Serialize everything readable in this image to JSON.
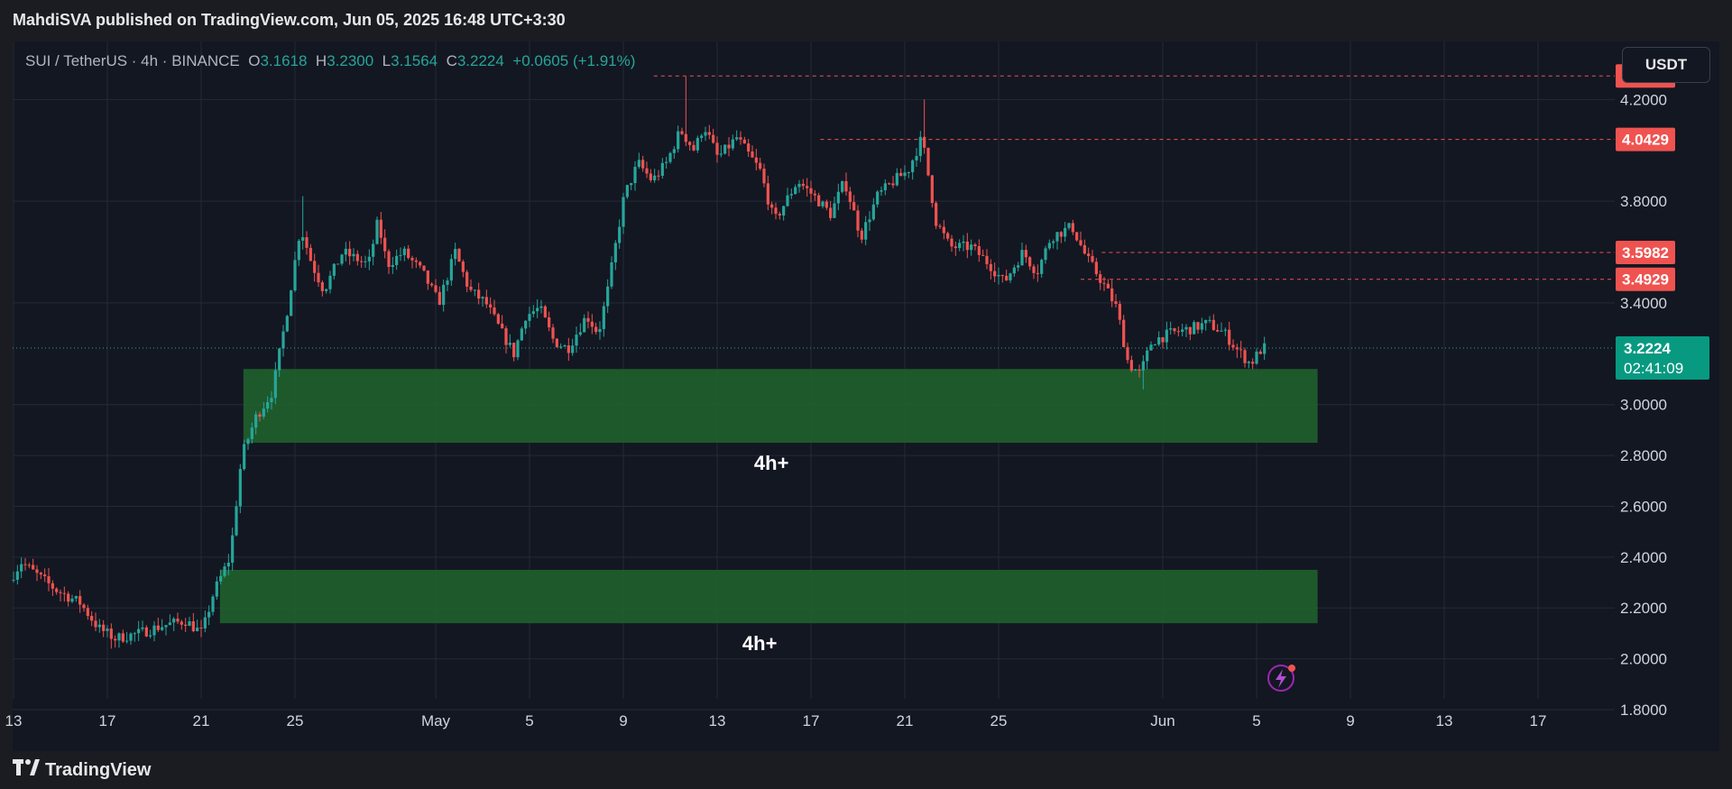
{
  "header": {
    "publisher": "MahdiSVA published on TradingView.com, Jun 05, 2025 16:48 UTC+3:30"
  },
  "legend": {
    "symbol": "SUI / TetherUS · 4h · BINANCE",
    "open_label": "O",
    "open": "3.1618",
    "high_label": "H",
    "high": "3.2300",
    "low_label": "L",
    "low": "3.1564",
    "close_label": "C",
    "close": "3.2224",
    "change": "+0.0605 (+1.91%)"
  },
  "currency_button": "USDT",
  "footer": {
    "brand": "TradingView",
    "logo_icon": "tradingview-logo-icon"
  },
  "colors": {
    "up": "#26a69a",
    "down": "#ef5350",
    "zone": "#1f5f2e",
    "level_line": "#ef5350",
    "price_badge": "#089981"
  },
  "chart_data": {
    "type": "candlestick",
    "symbol": "SUI / TetherUS",
    "interval": "4h",
    "exchange": "BINANCE",
    "ylim": [
      1.8,
      4.4
    ],
    "y_ticks": [
      "4.2000",
      "3.8000",
      "3.4000",
      "3.0000",
      "2.8000",
      "2.6000",
      "2.4000",
      "2.2000",
      "2.0000",
      "1.8000"
    ],
    "x_ticks": [
      "13",
      "17",
      "21",
      "25",
      "May",
      "5",
      "9",
      "13",
      "17",
      "21",
      "25",
      "Jun",
      "5",
      "9",
      "13",
      "17"
    ],
    "x_tick_days": [
      0,
      4,
      8,
      12,
      18,
      22,
      26,
      30,
      34,
      38,
      42,
      49,
      53,
      57,
      61,
      65
    ],
    "last_day": 53.4,
    "current_price": {
      "value": 3.2224,
      "label": "3.2224",
      "countdown": "02:41:09"
    },
    "levels": [
      {
        "value": 4.2927,
        "label": "4.2927",
        "from_day": 27.3
      },
      {
        "value": 4.0429,
        "label": "4.0429",
        "from_day": 34.4
      },
      {
        "value": 3.5982,
        "label": "3.5982",
        "from_day": 46.4
      },
      {
        "value": 3.4929,
        "label": "3.4929",
        "from_day": 45.5
      }
    ],
    "zones": [
      {
        "low": 2.85,
        "high": 3.14,
        "from_day": 9.8,
        "to_day": 55.6,
        "label": "4h+"
      },
      {
        "low": 2.14,
        "high": 2.35,
        "from_day": 8.8,
        "to_day": 55.6,
        "label": "4h+"
      }
    ],
    "anchors": [
      [
        0,
        2.31
      ],
      [
        0.5,
        2.38
      ],
      [
        1.3,
        2.32
      ],
      [
        2.0,
        2.27
      ],
      [
        3.0,
        2.22
      ],
      [
        3.8,
        2.12
      ],
      [
        4.5,
        2.08
      ],
      [
        5.5,
        2.1
      ],
      [
        6.5,
        2.13
      ],
      [
        7.5,
        2.15
      ],
      [
        8.2,
        2.1
      ],
      [
        8.7,
        2.26
      ],
      [
        9.4,
        2.4
      ],
      [
        9.9,
        2.8
      ],
      [
        10.5,
        2.95
      ],
      [
        11.2,
        3.05
      ],
      [
        11.8,
        3.35
      ],
      [
        12.4,
        3.7
      ],
      [
        12.9,
        3.55
      ],
      [
        13.4,
        3.45
      ],
      [
        14.2,
        3.6
      ],
      [
        15.3,
        3.55
      ],
      [
        15.7,
        3.72
      ],
      [
        16.1,
        3.55
      ],
      [
        16.8,
        3.6
      ],
      [
        17.6,
        3.52
      ],
      [
        18.3,
        3.4
      ],
      [
        19.0,
        3.6
      ],
      [
        19.6,
        3.45
      ],
      [
        20.3,
        3.4
      ],
      [
        21.0,
        3.28
      ],
      [
        21.5,
        3.2
      ],
      [
        22.0,
        3.35
      ],
      [
        22.6,
        3.38
      ],
      [
        23.2,
        3.25
      ],
      [
        23.8,
        3.22
      ],
      [
        24.6,
        3.35
      ],
      [
        25.1,
        3.28
      ],
      [
        25.5,
        3.45
      ],
      [
        26.2,
        3.82
      ],
      [
        26.8,
        3.95
      ],
      [
        27.4,
        3.88
      ],
      [
        28.0,
        3.95
      ],
      [
        28.6,
        4.08
      ],
      [
        29.2,
        4.0
      ],
      [
        29.6,
        4.1
      ],
      [
        30.2,
        3.97
      ],
      [
        31.0,
        4.05
      ],
      [
        32.0,
        3.92
      ],
      [
        32.6,
        3.72
      ],
      [
        33.6,
        3.88
      ],
      [
        34.3,
        3.82
      ],
      [
        35.0,
        3.75
      ],
      [
        35.6,
        3.88
      ],
      [
        36.3,
        3.66
      ],
      [
        37.0,
        3.82
      ],
      [
        37.7,
        3.88
      ],
      [
        38.3,
        3.92
      ],
      [
        38.9,
        4.05
      ],
      [
        39.5,
        3.72
      ],
      [
        40.1,
        3.62
      ],
      [
        41.0,
        3.62
      ],
      [
        41.8,
        3.55
      ],
      [
        42.4,
        3.48
      ],
      [
        43.2,
        3.6
      ],
      [
        43.8,
        3.52
      ],
      [
        44.4,
        3.66
      ],
      [
        45.3,
        3.7
      ],
      [
        45.9,
        3.58
      ],
      [
        46.6,
        3.48
      ],
      [
        47.2,
        3.38
      ],
      [
        47.7,
        3.16
      ],
      [
        48.2,
        3.12
      ],
      [
        48.7,
        3.25
      ],
      [
        49.5,
        3.28
      ],
      [
        50.4,
        3.3
      ],
      [
        51.1,
        3.32
      ],
      [
        51.8,
        3.28
      ],
      [
        52.3,
        3.22
      ],
      [
        52.9,
        3.16
      ],
      [
        53.4,
        3.2224
      ]
    ],
    "extremes": [
      {
        "day": 28.6,
        "high": 4.29
      },
      {
        "day": 38.9,
        "high": 4.2
      },
      {
        "day": 48.2,
        "low": 3.06
      },
      {
        "day": 4.2,
        "low": 2.04
      },
      {
        "day": 12.4,
        "high": 3.82
      }
    ]
  }
}
